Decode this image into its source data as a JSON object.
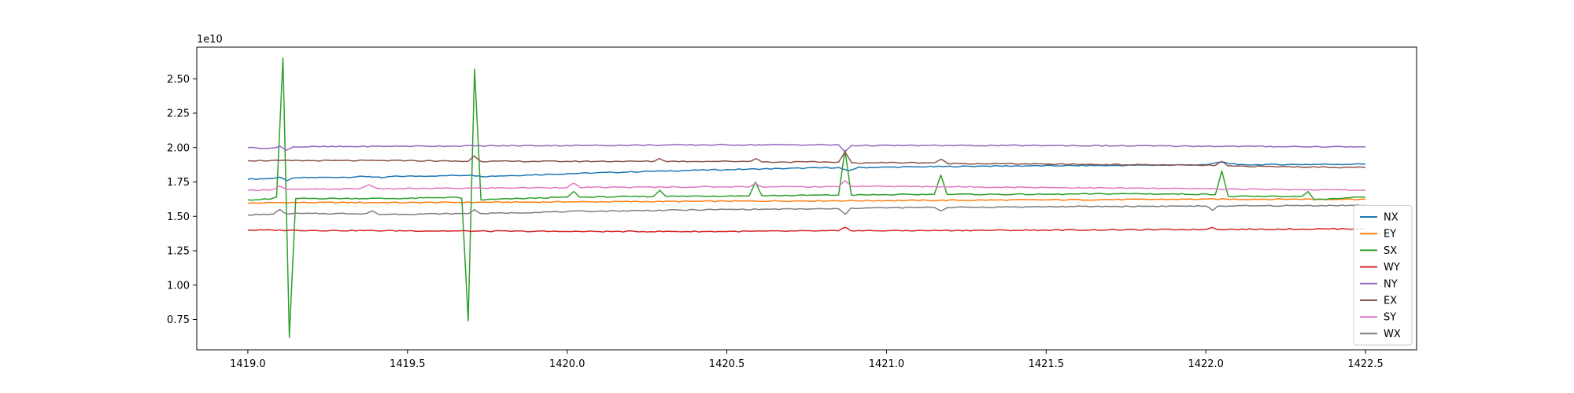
{
  "chart_data": {
    "type": "line",
    "title": "",
    "xlabel": "",
    "ylabel": "",
    "y_offset_label": "1e10",
    "xlim": [
      1418.84,
      1422.66
    ],
    "ylim": [
      0.53,
      2.73
    ],
    "x_ticks": [
      1419.0,
      1419.5,
      1420.0,
      1420.5,
      1421.0,
      1421.5,
      1422.0,
      1422.5
    ],
    "x_tick_labels": [
      "1419.0",
      "1419.5",
      "1420.0",
      "1420.5",
      "1421.0",
      "1421.5",
      "1422.0",
      "1422.5"
    ],
    "y_ticks": [
      0.75,
      1.0,
      1.25,
      1.5,
      1.75,
      2.0,
      2.25,
      2.5
    ],
    "y_tick_labels": [
      "0.75",
      "1.00",
      "1.25",
      "1.50",
      "1.75",
      "2.00",
      "2.25",
      "2.50"
    ],
    "grid": false,
    "legend_position": "bottom-right",
    "x_range": [
      1419.0,
      1422.5
    ],
    "series": [
      {
        "name": "NX",
        "color": "#1f77b4",
        "points": [
          [
            1419.0,
            1.77
          ],
          [
            1419.07,
            1.775
          ],
          [
            1419.1,
            1.785
          ],
          [
            1419.12,
            1.76
          ],
          [
            1419.15,
            1.78
          ],
          [
            1419.3,
            1.785
          ],
          [
            1419.38,
            1.79
          ],
          [
            1419.42,
            1.78
          ],
          [
            1419.45,
            1.79
          ],
          [
            1419.6,
            1.795
          ],
          [
            1419.7,
            1.8
          ],
          [
            1419.73,
            1.79
          ],
          [
            1420.0,
            1.81
          ],
          [
            1420.3,
            1.83
          ],
          [
            1420.5,
            1.84
          ],
          [
            1420.85,
            1.855
          ],
          [
            1420.88,
            1.83
          ],
          [
            1420.91,
            1.855
          ],
          [
            1421.3,
            1.865
          ],
          [
            1421.7,
            1.87
          ],
          [
            1422.0,
            1.875
          ],
          [
            1422.05,
            1.895
          ],
          [
            1422.1,
            1.875
          ],
          [
            1422.5,
            1.88
          ]
        ],
        "spikes": []
      },
      {
        "name": "EY",
        "color": "#ff7f0e",
        "points": [
          [
            1419.0,
            1.595
          ],
          [
            1419.1,
            1.6
          ],
          [
            1419.5,
            1.6
          ],
          [
            1420.0,
            1.605
          ],
          [
            1420.5,
            1.61
          ],
          [
            1421.0,
            1.615
          ],
          [
            1421.5,
            1.62
          ],
          [
            1422.0,
            1.625
          ],
          [
            1422.5,
            1.625
          ]
        ],
        "spikes": []
      },
      {
        "name": "SX",
        "color": "#2ca02c",
        "points": [
          [
            1419.0,
            1.62
          ],
          [
            1419.07,
            1.625
          ],
          [
            1419.09,
            1.64
          ],
          [
            1419.11,
            2.65
          ],
          [
            1419.13,
            0.62
          ],
          [
            1419.15,
            1.63
          ],
          [
            1419.5,
            1.63
          ],
          [
            1419.65,
            1.64
          ],
          [
            1419.67,
            1.63
          ],
          [
            1419.69,
            0.74
          ],
          [
            1419.71,
            2.57
          ],
          [
            1419.73,
            1.62
          ],
          [
            1420.0,
            1.64
          ],
          [
            1420.02,
            1.68
          ],
          [
            1420.04,
            1.64
          ],
          [
            1420.27,
            1.645
          ],
          [
            1420.29,
            1.69
          ],
          [
            1420.31,
            1.645
          ],
          [
            1420.57,
            1.65
          ],
          [
            1420.59,
            1.75
          ],
          [
            1420.61,
            1.65
          ],
          [
            1420.85,
            1.655
          ],
          [
            1420.87,
            1.98
          ],
          [
            1420.89,
            1.655
          ],
          [
            1421.15,
            1.66
          ],
          [
            1421.17,
            1.8
          ],
          [
            1421.19,
            1.66
          ],
          [
            1421.5,
            1.66
          ],
          [
            1421.75,
            1.665
          ],
          [
            1422.03,
            1.66
          ],
          [
            1422.05,
            1.83
          ],
          [
            1422.07,
            1.645
          ],
          [
            1422.3,
            1.645
          ],
          [
            1422.32,
            1.68
          ],
          [
            1422.34,
            1.62
          ],
          [
            1422.5,
            1.64
          ]
        ],
        "spikes": []
      },
      {
        "name": "WY",
        "color": "#d62728",
        "points": [
          [
            1419.0,
            1.4
          ],
          [
            1419.5,
            1.395
          ],
          [
            1420.0,
            1.39
          ],
          [
            1420.5,
            1.39
          ],
          [
            1420.85,
            1.395
          ],
          [
            1420.87,
            1.42
          ],
          [
            1420.89,
            1.395
          ],
          [
            1421.5,
            1.4
          ],
          [
            1422.0,
            1.405
          ],
          [
            1422.02,
            1.42
          ],
          [
            1422.04,
            1.405
          ],
          [
            1422.5,
            1.41
          ]
        ],
        "spikes": []
      },
      {
        "name": "NY",
        "color": "#9467bd",
        "points": [
          [
            1419.0,
            2.0
          ],
          [
            1419.07,
            1.995
          ],
          [
            1419.1,
            2.01
          ],
          [
            1419.12,
            1.98
          ],
          [
            1419.14,
            2.005
          ],
          [
            1419.5,
            2.01
          ],
          [
            1420.0,
            2.015
          ],
          [
            1420.5,
            2.02
          ],
          [
            1420.85,
            2.02
          ],
          [
            1420.87,
            1.97
          ],
          [
            1420.89,
            2.015
          ],
          [
            1421.5,
            2.015
          ],
          [
            1422.0,
            2.01
          ],
          [
            1422.5,
            2.005
          ]
        ],
        "spikes": []
      },
      {
        "name": "EX",
        "color": "#8c564b",
        "points": [
          [
            1419.0,
            1.905
          ],
          [
            1419.5,
            1.905
          ],
          [
            1419.69,
            1.9
          ],
          [
            1419.71,
            1.94
          ],
          [
            1419.73,
            1.9
          ],
          [
            1420.0,
            1.9
          ],
          [
            1420.27,
            1.9
          ],
          [
            1420.29,
            1.92
          ],
          [
            1420.31,
            1.9
          ],
          [
            1420.57,
            1.9
          ],
          [
            1420.59,
            1.92
          ],
          [
            1420.61,
            1.895
          ],
          [
            1420.85,
            1.895
          ],
          [
            1420.87,
            1.97
          ],
          [
            1420.89,
            1.89
          ],
          [
            1421.15,
            1.89
          ],
          [
            1421.17,
            1.915
          ],
          [
            1421.19,
            1.885
          ],
          [
            1421.5,
            1.88
          ],
          [
            1421.8,
            1.875
          ],
          [
            1422.03,
            1.87
          ],
          [
            1422.05,
            1.9
          ],
          [
            1422.07,
            1.865
          ],
          [
            1422.5,
            1.855
          ]
        ],
        "spikes": []
      },
      {
        "name": "SY",
        "color": "#e377c2",
        "points": [
          [
            1419.0,
            1.69
          ],
          [
            1419.08,
            1.695
          ],
          [
            1419.1,
            1.72
          ],
          [
            1419.12,
            1.695
          ],
          [
            1419.35,
            1.7
          ],
          [
            1419.38,
            1.73
          ],
          [
            1419.41,
            1.7
          ],
          [
            1420.0,
            1.71
          ],
          [
            1420.02,
            1.74
          ],
          [
            1420.04,
            1.71
          ],
          [
            1420.5,
            1.715
          ],
          [
            1420.57,
            1.715
          ],
          [
            1420.59,
            1.74
          ],
          [
            1420.61,
            1.715
          ],
          [
            1420.85,
            1.715
          ],
          [
            1420.87,
            1.76
          ],
          [
            1420.89,
            1.72
          ],
          [
            1421.5,
            1.71
          ],
          [
            1422.0,
            1.7
          ],
          [
            1422.5,
            1.69
          ]
        ],
        "spikes": []
      },
      {
        "name": "WX",
        "color": "#7f7f7f",
        "points": [
          [
            1419.0,
            1.51
          ],
          [
            1419.08,
            1.515
          ],
          [
            1419.1,
            1.55
          ],
          [
            1419.12,
            1.52
          ],
          [
            1419.37,
            1.52
          ],
          [
            1419.39,
            1.54
          ],
          [
            1419.41,
            1.515
          ],
          [
            1419.69,
            1.52
          ],
          [
            1419.71,
            1.55
          ],
          [
            1419.73,
            1.52
          ],
          [
            1420.0,
            1.535
          ],
          [
            1420.5,
            1.55
          ],
          [
            1420.85,
            1.555
          ],
          [
            1420.87,
            1.515
          ],
          [
            1420.89,
            1.56
          ],
          [
            1421.15,
            1.565
          ],
          [
            1421.17,
            1.54
          ],
          [
            1421.19,
            1.565
          ],
          [
            1421.5,
            1.57
          ],
          [
            1422.0,
            1.575
          ],
          [
            1422.02,
            1.545
          ],
          [
            1422.04,
            1.575
          ],
          [
            1422.5,
            1.58
          ]
        ],
        "spikes": []
      }
    ]
  }
}
